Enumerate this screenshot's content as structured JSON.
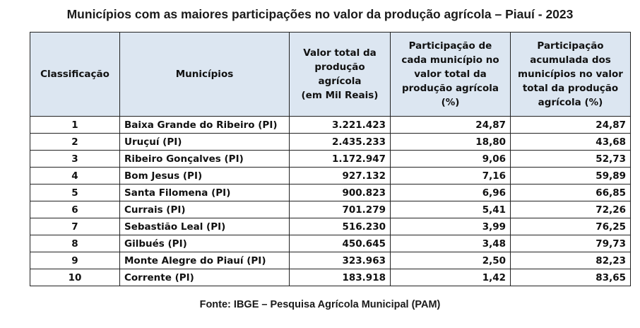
{
  "title": "Municípios com as maiores participações no valor da produção agrícola – Piauí - 2023",
  "table": {
    "headers": [
      "Classificação",
      "Municípios",
      "Valor total da\nprodução agrícola\n(em Mil Reais)",
      "Participação de\ncada município no\nvalor total da\nprodução agrícola\n(%)",
      "Participação\nacumulada dos\nmunicípios no valor\ntotal da produção\nagrícola (%)"
    ],
    "rows": [
      {
        "rank": "1",
        "municipio": "Baixa Grande do Ribeiro (PI)",
        "valor": "3.221.423",
        "participacao": "24,87",
        "acumulada": "24,87"
      },
      {
        "rank": "2",
        "municipio": "Uruçuí (PI)",
        "valor": "2.435.233",
        "participacao": "18,80",
        "acumulada": "43,68"
      },
      {
        "rank": "3",
        "municipio": "Ribeiro Gonçalves (PI)",
        "valor": "1.172.947",
        "participacao": "9,06",
        "acumulada": "52,73"
      },
      {
        "rank": "4",
        "municipio": "Bom Jesus (PI)",
        "valor": "927.132",
        "participacao": "7,16",
        "acumulada": "59,89"
      },
      {
        "rank": "5",
        "municipio": "Santa Filomena (PI)",
        "valor": "900.823",
        "participacao": "6,96",
        "acumulada": "66,85"
      },
      {
        "rank": "6",
        "municipio": "Currais (PI)",
        "valor": "701.279",
        "participacao": "5,41",
        "acumulada": "72,26"
      },
      {
        "rank": "7",
        "municipio": "Sebastião Leal (PI)",
        "valor": "516.230",
        "participacao": "3,99",
        "acumulada": "76,25"
      },
      {
        "rank": "8",
        "municipio": "Gilbués (PI)",
        "valor": "450.645",
        "participacao": "3,48",
        "acumulada": "79,73"
      },
      {
        "rank": "9",
        "municipio": "Monte Alegre do Piauí (PI)",
        "valor": "323.963",
        "participacao": "2,50",
        "acumulada": "82,23"
      },
      {
        "rank": "10",
        "municipio": "Corrente (PI)",
        "valor": "183.918",
        "participacao": "1,42",
        "acumulada": "83,65"
      }
    ]
  },
  "source": "Fonte: IBGE – Pesquisa Agrícola Municipal (PAM)",
  "colors": {
    "header_bg": "#dce6f1",
    "border": "#222222",
    "text": "#111111"
  }
}
